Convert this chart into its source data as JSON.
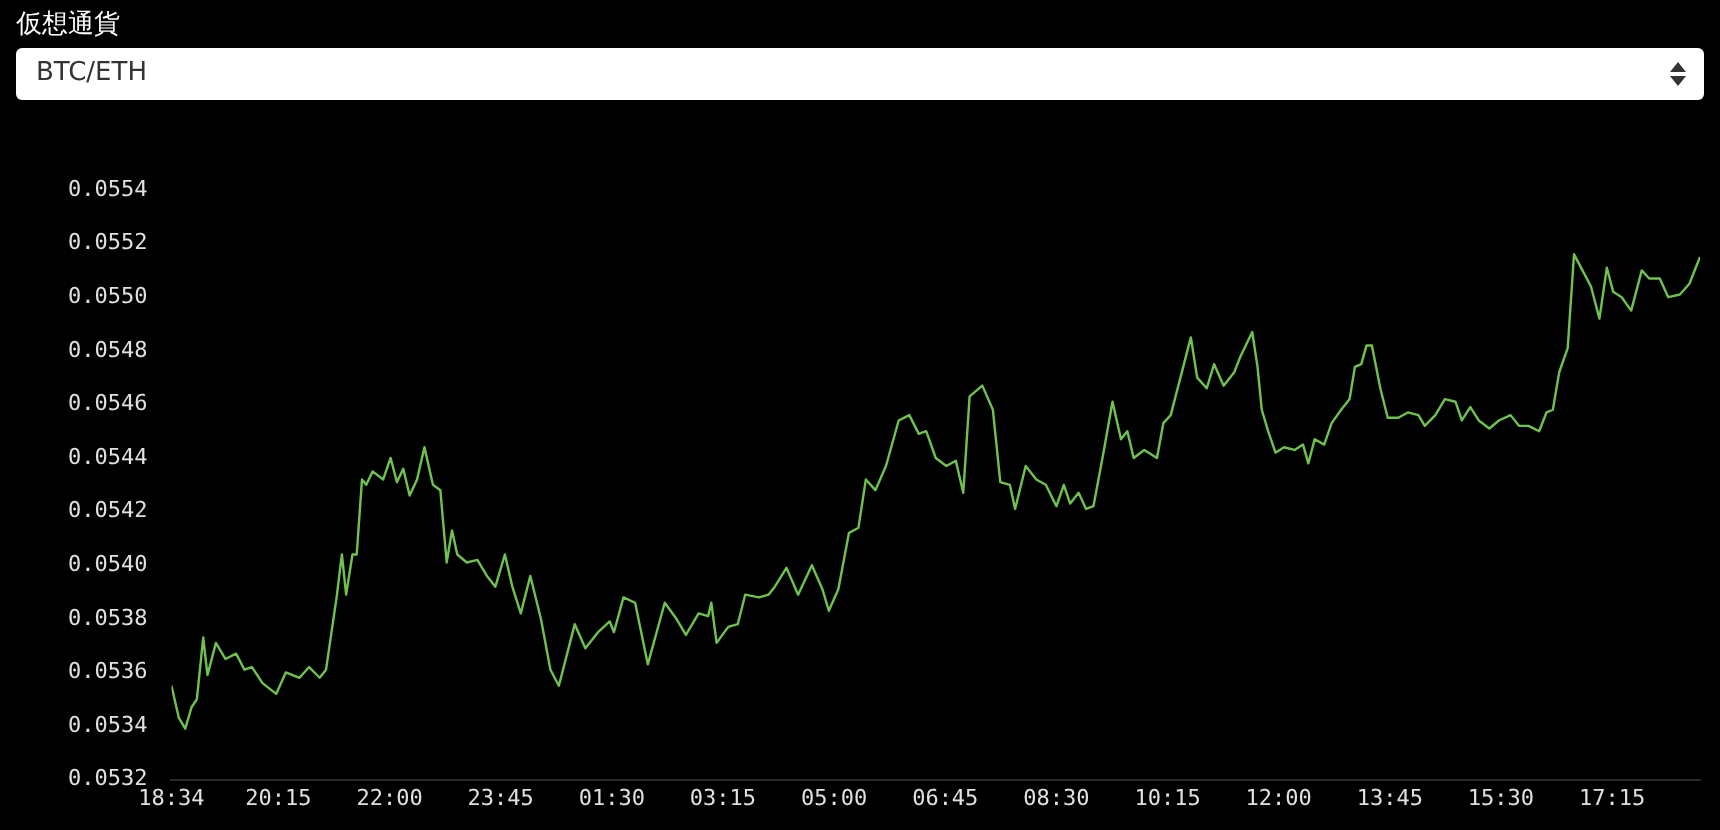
{
  "chart_data": {
    "type": "line",
    "title": "仮想通貨",
    "subtitle": "BTC/ETH",
    "x": [
      "--01-01T18:34",
      "--01-01T18:41",
      "--01-01T18:47",
      "--01-01T18:53",
      "--01-01T18:58",
      "--01-01T19:04",
      "--01-01T19:08",
      "--01-01T19:16",
      "--01-01T19:25",
      "--01-01T19:35",
      "--01-01T19:43",
      "--01-01T19:50",
      "--01-01T20:00",
      "--01-01T20:13",
      "--01-01T20:22",
      "--01-01T20:35",
      "--01-01T20:44",
      "--01-01T20:54",
      "--01-01T21:00",
      "--01-01T21:10",
      "--01-01T21:15",
      "--01-01T21:19",
      "--01-01T21:25",
      "--01-01T21:29",
      "--01-01T21:34",
      "--01-01T21:38",
      "--01-01T21:44",
      "--01-01T21:54",
      "--01-01T22:01",
      "--01-01T22:07",
      "--01-01T22:13",
      "--01-01T22:19",
      "--01-01T22:26",
      "--01-01T22:33",
      "--01-01T22:41",
      "--01-01T22:48",
      "--01-01T22:54",
      "--01-01T22:59",
      "--01-01T23:04",
      "--01-01T23:13",
      "--01-01T23:23",
      "--01-01T23:32",
      "--01-01T23:40",
      "--01-01T23:49",
      "--01-01T23:56",
      "--01-02T00:04",
      "--01-02T00:13",
      "--01-02T00:23",
      "--01-02T00:32",
      "--01-02T00:40",
      "--01-02T00:55",
      "--01-02T01:05",
      "--01-02T01:17",
      "--01-02T01:28",
      "--01-02T01:32",
      "--01-02T01:41",
      "--01-02T01:52",
      "--01-02T02:04",
      "--01-02T02:20",
      "--01-02T02:31",
      "--01-02T02:40",
      "--01-02T02:52",
      "--01-02T03:01",
      "--01-02T03:04",
      "--01-02T03:09",
      "--01-02T03:20",
      "--01-02T03:29",
      "--01-02T03:36",
      "--01-02T03:49",
      "--01-02T03:58",
      "--01-02T04:04",
      "--01-02T04:15",
      "--01-02T04:26",
      "--01-02T04:39",
      "--01-02T04:49",
      "--01-02T04:55",
      "--01-02T05:04",
      "--01-02T05:14",
      "--01-02T05:23",
      "--01-02T05:30",
      "--01-02T05:39",
      "--01-02T05:49",
      "--01-02T06:01",
      "--01-02T06:11",
      "--01-02T06:20",
      "--01-02T06:27",
      "--01-02T06:36",
      "--01-02T06:46",
      "--01-02T06:55",
      "--01-02T07:02",
      "--01-02T07:08",
      "--01-02T07:20",
      "--01-02T07:30",
      "--01-02T07:37",
      "--01-02T07:46",
      "--01-02T07:51",
      "--01-02T08:01",
      "--01-02T08:11",
      "--01-02T08:20",
      "--01-02T08:30",
      "--01-02T08:37",
      "--01-02T08:43",
      "--01-02T08:51",
      "--01-02T08:58",
      "--01-02T09:05",
      "--01-02T09:14",
      "--01-02T09:23",
      "--01-02T09:31",
      "--01-02T09:37",
      "--01-02T09:43",
      "--01-02T09:53",
      "--01-02T10:05",
      "--01-02T10:11",
      "--01-02T10:18",
      "--01-02T10:37",
      "--01-02T10:43",
      "--01-02T10:52",
      "--01-02T10:59",
      "--01-02T11:08",
      "--01-02T11:18",
      "--01-02T11:24",
      "--01-02T11:35",
      "--01-02T11:40",
      "--01-02T11:44",
      "--01-02T11:50",
      "--01-02T11:57",
      "--01-02T12:05",
      "--01-02T12:15",
      "--01-02T12:23",
      "--01-02T12:28",
      "--01-02T12:34",
      "--01-02T12:43",
      "--01-02T12:50",
      "--01-02T12:59",
      "--01-02T13:07",
      "--01-02T13:12",
      "--01-02T13:18",
      "--01-02T13:23",
      "--01-02T13:28",
      "--01-02T13:36",
      "--01-02T13:43",
      "--01-02T13:53",
      "--01-02T14:02",
      "--01-02T14:12",
      "--01-02T14:18",
      "--01-02T14:28",
      "--01-02T14:37",
      "--01-02T14:47",
      "--01-02T14:53",
      "--01-02T15:01",
      "--01-02T15:09",
      "--01-02T15:19",
      "--01-02T15:28",
      "--01-02T15:39",
      "--01-02T15:47",
      "--01-02T15:56",
      "--01-02T16:06",
      "--01-02T16:13",
      "--01-02T16:19",
      "--01-02T16:25",
      "--01-02T16:33",
      "--01-02T16:39",
      "--01-02T16:47",
      "--01-02T16:55",
      "--01-02T17:03",
      "--01-02T17:10",
      "--01-02T17:16",
      "--01-02T17:24",
      "--01-02T17:33",
      "--01-02T17:43",
      "--01-02T17:50",
      "--01-02T18:00",
      "--01-02T18:08",
      "--01-02T18:19",
      "--01-02T18:28",
      "--01-02T18:38"
    ],
    "series": [
      {
        "color": "#6fc24f",
        "values": [
          0.05355,
          0.05343,
          0.05339,
          0.05347,
          0.0535,
          0.05373,
          0.05359,
          0.05371,
          0.05365,
          0.05367,
          0.05361,
          0.05362,
          0.05356,
          0.05352,
          0.0536,
          0.05358,
          0.05362,
          0.05358,
          0.05361,
          0.05388,
          0.05404,
          0.05389,
          0.05404,
          0.05404,
          0.05432,
          0.0543,
          0.05435,
          0.05432,
          0.0544,
          0.05431,
          0.05436,
          0.05426,
          0.05432,
          0.05444,
          0.0543,
          0.05428,
          0.05401,
          0.05413,
          0.05404,
          0.05401,
          0.05402,
          0.05396,
          0.05392,
          0.05404,
          0.05392,
          0.05382,
          0.05396,
          0.0538,
          0.05361,
          0.05355,
          0.05378,
          0.05369,
          0.05375,
          0.05379,
          0.05375,
          0.05388,
          0.05386,
          0.05363,
          0.05386,
          0.0538,
          0.05374,
          0.05382,
          0.05381,
          0.05386,
          0.05371,
          0.05377,
          0.05378,
          0.05389,
          0.05388,
          0.05389,
          0.05392,
          0.05399,
          0.05389,
          0.054,
          0.05391,
          0.05383,
          0.05391,
          0.05412,
          0.05414,
          0.05432,
          0.05428,
          0.05437,
          0.05454,
          0.05456,
          0.05449,
          0.0545,
          0.0544,
          0.05437,
          0.05439,
          0.05427,
          0.05463,
          0.05467,
          0.05458,
          0.05431,
          0.0543,
          0.05421,
          0.05437,
          0.05432,
          0.0543,
          0.05422,
          0.0543,
          0.05423,
          0.05427,
          0.05421,
          0.05422,
          0.05441,
          0.05461,
          0.05447,
          0.0545,
          0.0544,
          0.05443,
          0.0544,
          0.05453,
          0.05456,
          0.05485,
          0.0547,
          0.05466,
          0.05475,
          0.05467,
          0.05472,
          0.05478,
          0.05487,
          0.05474,
          0.05458,
          0.0545,
          0.05442,
          0.05444,
          0.05443,
          0.05445,
          0.05438,
          0.05447,
          0.05445,
          0.05453,
          0.05458,
          0.05462,
          0.05474,
          0.05475,
          0.05482,
          0.05482,
          0.05466,
          0.05455,
          0.05455,
          0.05457,
          0.05456,
          0.05452,
          0.05456,
          0.05462,
          0.05461,
          0.05454,
          0.05459,
          0.05454,
          0.05451,
          0.05454,
          0.05456,
          0.05452,
          0.05452,
          0.0545,
          0.05457,
          0.05458,
          0.05472,
          0.05481,
          0.05516,
          0.0551,
          0.05504,
          0.05492,
          0.05511,
          0.05502,
          0.055,
          0.05495,
          0.0551,
          0.05507,
          0.05507,
          0.055,
          0.05501,
          0.05505,
          0.05515
        ]
      }
    ],
    "xlim": [
      "--01-01T18:34",
      "--01-02T18:38"
    ],
    "xticks": [
      {
        "value": "--01-01T18:34",
        "label": "18:34"
      },
      {
        "value": "--01-01T20:15",
        "label": "20:15"
      },
      {
        "value": "--01-01T22:00",
        "label": "22:00"
      },
      {
        "value": "--01-01T23:45",
        "label": "23:45"
      },
      {
        "value": "--01-02T01:30",
        "label": "01:30"
      },
      {
        "value": "--01-02T03:15",
        "label": "03:15"
      },
      {
        "value": "--01-02T05:00",
        "label": "05:00"
      },
      {
        "value": "--01-02T06:45",
        "label": "06:45"
      },
      {
        "value": "--01-02T08:30",
        "label": "08:30"
      },
      {
        "value": "--01-02T10:15",
        "label": "10:15"
      },
      {
        "value": "--01-02T12:00",
        "label": "12:00"
      },
      {
        "value": "--01-02T13:45",
        "label": "13:45"
      },
      {
        "value": "--01-02T15:30",
        "label": "15:30"
      },
      {
        "value": "--01-02T17:15",
        "label": "17:15"
      }
    ],
    "ylim": [
      0.0532,
      0.0554
    ],
    "yticks": [
      0.0532,
      0.0534,
      0.0536,
      0.0538,
      {
        "value": 0.054,
        "label": "0.0540"
      },
      0.0542,
      0.0544,
      0.0546,
      0.0548,
      {
        "value": 0.055,
        "label": "0.0550"
      },
      0.0552,
      0.0554
    ],
    "grid": false,
    "legend": false,
    "marker": "none",
    "line_style": "solid"
  }
}
